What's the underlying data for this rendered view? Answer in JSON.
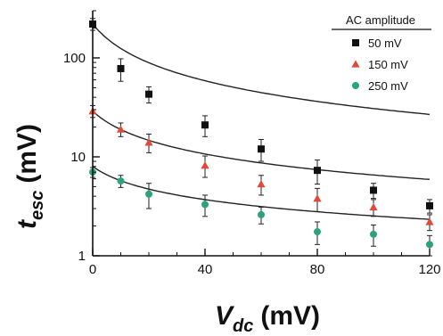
{
  "chart_data": {
    "type": "scatter",
    "xlabel_main": "V",
    "xlabel_sub": "dc",
    "xlabel_unit": "(mV)",
    "ylabel_main": "t",
    "ylabel_sub": "esc",
    "ylabel_unit": "(mV)",
    "xlim": [
      0,
      120
    ],
    "ylim": [
      1,
      300
    ],
    "yscale": "log",
    "x_ticks": [
      0,
      40,
      80,
      120
    ],
    "y_ticks": [
      1,
      10,
      100
    ],
    "legend_title": "AC amplitude",
    "legend_position": "top-right",
    "series": [
      {
        "name": "50 mV",
        "color": "#111111",
        "marker": "square",
        "x": [
          0,
          10,
          20,
          40,
          60,
          80,
          100,
          120
        ],
        "y": [
          220,
          78,
          43,
          21,
          12,
          7.3,
          4.6,
          3.2
        ],
        "err": [
          30,
          20,
          8,
          5,
          3,
          2,
          0.8,
          0.5
        ],
        "fit": {
          "a": 220,
          "p": 0.82
        }
      },
      {
        "name": "150 mV",
        "color": "#e04a3a",
        "marker": "triangle",
        "x": [
          0,
          10,
          20,
          40,
          60,
          80,
          100,
          120
        ],
        "y": [
          29,
          19,
          14,
          8.2,
          5.3,
          3.8,
          3.1,
          2.2
        ],
        "err": [
          4,
          3,
          3,
          2,
          1.2,
          1,
          0.6,
          0.4
        ],
        "fit": {
          "a": 29,
          "p": 0.62
        }
      },
      {
        "name": "250 mV",
        "color": "#2aa37a",
        "marker": "circle",
        "x": [
          0,
          10,
          20,
          40,
          60,
          80,
          100,
          120
        ],
        "y": [
          7,
          5.7,
          4.2,
          3.3,
          2.6,
          1.75,
          1.65,
          1.3
        ],
        "err": [
          0.8,
          0.8,
          1.2,
          0.8,
          0.5,
          0.45,
          0.4,
          0.3
        ],
        "fit": {
          "a": 8,
          "p": 0.48
        }
      }
    ]
  }
}
